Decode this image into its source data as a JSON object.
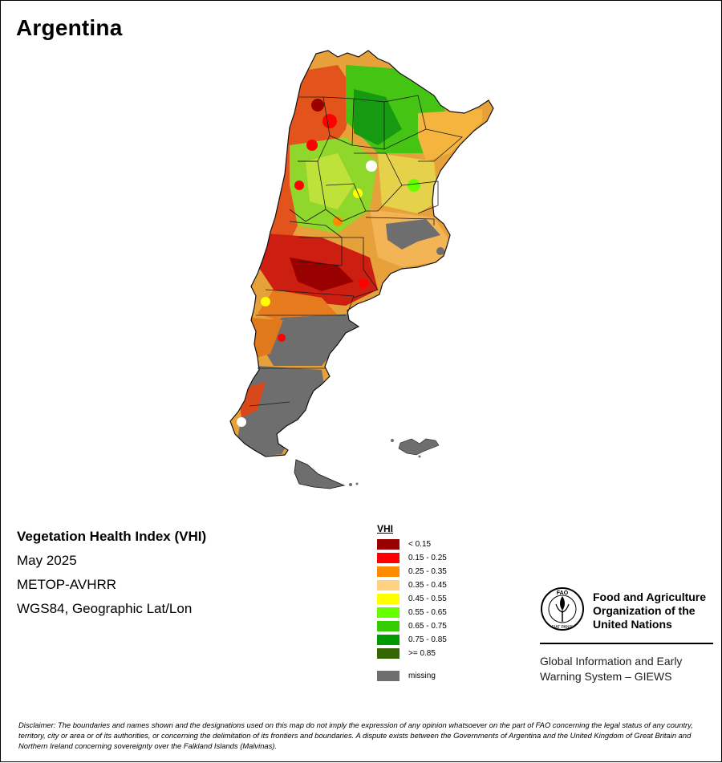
{
  "map": {
    "title": "Argentina",
    "index_name": "Vegetation Health Index (VHI)",
    "period": "May 2025",
    "sensor": "METOP-AVHRR",
    "projection": "WGS84, Geographic Lat/Lon"
  },
  "legend": {
    "title": "VHI",
    "items": [
      {
        "label": "< 0.15",
        "color": "#990000"
      },
      {
        "label": "0.15 - 0.25",
        "color": "#ff0000"
      },
      {
        "label": "0.25 - 0.35",
        "color": "#ff8c00"
      },
      {
        "label": "0.35 - 0.45",
        "color": "#ffd27f"
      },
      {
        "label": "0.45 - 0.55",
        "color": "#ffff00"
      },
      {
        "label": "0.55 - 0.65",
        "color": "#66ff00"
      },
      {
        "label": "0.65 - 0.75",
        "color": "#33cc00"
      },
      {
        "label": "0.75 - 0.85",
        "color": "#009900"
      },
      {
        "label": ">= 0.85",
        "color": "#336600"
      }
    ],
    "missing": {
      "label": "missing",
      "color": "#6e6e6e"
    }
  },
  "organization": {
    "name_line1": "Food and Agriculture",
    "name_line2": "Organization of the",
    "name_line3": "United Nations",
    "logo_text": "FAO",
    "logo_motto": "FIAT PANIS",
    "program_line1": "Global Information and Early",
    "program_line2": "Warning System – GIEWS"
  },
  "disclaimer": "Disclaimer: The boundaries and names shown and the designations used on this map do not imply the expression of any opinion whatsoever on the part of FAO concerning the legal status of any country, territory, city or area or of its authorities, or concerning the delimitation of its frontiers and boundaries. A dispute exists between the Governments of Argentina and the United Kingdom of Great Britain and Northern Ireland concerning sovereignty over the Falkland Islands (Malvinas).",
  "colors": {
    "frame": "#000000",
    "boundary": "#1a1a1a",
    "missing": "#6e6e6e"
  }
}
